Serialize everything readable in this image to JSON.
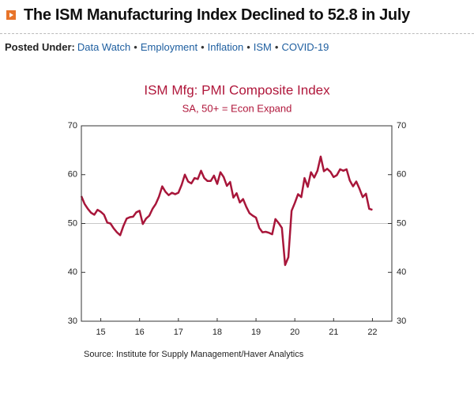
{
  "header": {
    "title": "The ISM Manufacturing Index Declined to 52.8 in July"
  },
  "posted_under": {
    "label": "Posted Under:",
    "separator": "•",
    "links": [
      "Data Watch",
      "Employment",
      "Inflation",
      "ISM",
      "COVID-19"
    ]
  },
  "chart_data": {
    "type": "line",
    "title": "ISM Mfg: PMI Composite Index",
    "subtitle": "SA, 50+ = Econ Expand",
    "source": "Source:  Institute for Supply Management/Haver Analytics",
    "x": [
      2015.0,
      2015.0833,
      2015.1667,
      2015.25,
      2015.3333,
      2015.4167,
      2015.5,
      2015.5833,
      2015.6667,
      2015.75,
      2015.8333,
      2015.9167,
      2016.0,
      2016.0833,
      2016.1667,
      2016.25,
      2016.3333,
      2016.4167,
      2016.5,
      2016.5833,
      2016.6667,
      2016.75,
      2016.8333,
      2016.9167,
      2017.0,
      2017.0833,
      2017.1667,
      2017.25,
      2017.3333,
      2017.4167,
      2017.5,
      2017.5833,
      2017.6667,
      2017.75,
      2017.8333,
      2017.9167,
      2018.0,
      2018.0833,
      2018.1667,
      2018.25,
      2018.3333,
      2018.4167,
      2018.5,
      2018.5833,
      2018.6667,
      2018.75,
      2018.8333,
      2018.9167,
      2019.0,
      2019.0833,
      2019.1667,
      2019.25,
      2019.3333,
      2019.4167,
      2019.5,
      2019.5833,
      2019.6667,
      2019.75,
      2019.8333,
      2019.9167,
      2020.0,
      2020.0833,
      2020.1667,
      2020.25,
      2020.3333,
      2020.4167,
      2020.5,
      2020.5833,
      2020.6667,
      2020.75,
      2020.8333,
      2020.9167,
      2021.0,
      2021.0833,
      2021.1667,
      2021.25,
      2021.3333,
      2021.4167,
      2021.5,
      2021.5833,
      2021.6667,
      2021.75,
      2021.8333,
      2021.9167,
      2022.0,
      2022.0833,
      2022.1667,
      2022.25,
      2022.3333,
      2022.4167,
      2022.5
    ],
    "series": [
      {
        "name": "ISM Mfg: PMI Composite Index",
        "color": "#a8163a",
        "values": [
          55.6,
          54.0,
          53.0,
          52.2,
          51.8,
          52.8,
          52.4,
          51.8,
          50.2,
          50.0,
          49.0,
          48.2,
          47.6,
          49.5,
          51.0,
          51.3,
          51.4,
          52.3,
          52.6,
          49.9,
          51.0,
          51.6,
          53.0,
          54.0,
          55.5,
          57.6,
          56.5,
          55.8,
          56.3,
          56.0,
          56.3,
          57.9,
          60.0,
          58.6,
          58.2,
          59.3,
          59.1,
          60.8,
          59.3,
          58.7,
          58.7,
          59.8,
          58.1,
          60.5,
          59.5,
          57.7,
          58.5,
          55.3,
          56.2,
          54.3,
          55.0,
          53.4,
          52.1,
          51.6,
          51.2,
          49.1,
          48.2,
          48.3,
          48.1,
          47.8,
          50.9,
          50.1,
          49.1,
          41.5,
          43.1,
          52.6,
          54.2,
          56.0,
          55.4,
          59.3,
          57.5,
          60.5,
          59.4,
          60.8,
          63.7,
          60.7,
          61.2,
          60.6,
          59.5,
          59.9,
          61.1,
          60.8,
          61.1,
          58.8,
          57.6,
          58.6,
          57.1,
          55.4,
          56.1,
          53.0,
          52.8
        ]
      }
    ],
    "xlim": [
      2015.0,
      2023.0
    ],
    "xticks": [
      {
        "value": 2015.5,
        "label": "15"
      },
      {
        "value": 2016.5,
        "label": "16"
      },
      {
        "value": 2017.5,
        "label": "17"
      },
      {
        "value": 2018.5,
        "label": "18"
      },
      {
        "value": 2019.5,
        "label": "19"
      },
      {
        "value": 2020.5,
        "label": "20"
      },
      {
        "value": 2021.5,
        "label": "21"
      },
      {
        "value": 2022.5,
        "label": "22"
      }
    ],
    "ylim": [
      30,
      70
    ],
    "yticks": [
      30,
      40,
      50,
      60,
      70
    ],
    "y2lim": [
      30,
      70
    ],
    "y2ticks": [
      30,
      40,
      50,
      60,
      70
    ],
    "reference_line": 50,
    "title_color": "#b0173b"
  }
}
